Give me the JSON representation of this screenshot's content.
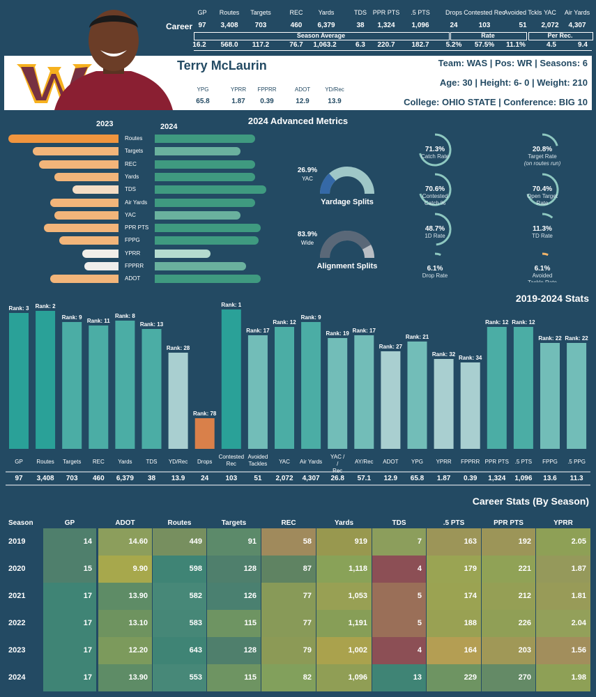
{
  "career": {
    "label": "Career",
    "cols": [
      {
        "h": "GP",
        "v": "97"
      },
      {
        "h": "Routes",
        "v": "3,408"
      },
      {
        "h": "Targets",
        "v": "703"
      },
      {
        "h": "REC",
        "v": "460"
      },
      {
        "h": "Yards",
        "v": "6,379"
      },
      {
        "h": "TDS",
        "v": "38"
      },
      {
        "h": "PPR PTS",
        "v": "1,324"
      },
      {
        "h": ".5 PTS",
        "v": "1,096"
      },
      {
        "h": "Drops",
        "v": "24"
      },
      {
        "h": "Contested Rec",
        "v": "103"
      },
      {
        "h": "Avoided Tckls",
        "v": "51"
      },
      {
        "h": "YAC",
        "v": "2,072"
      },
      {
        "h": "Air Yards",
        "v": "4,307"
      }
    ],
    "group_labels": {
      "season_avg": "Season Average",
      "rate": "Rate",
      "per_rec": "Per Rec."
    },
    "second_row": [
      "16.2",
      "568.0",
      "117.2",
      "76.7",
      "1,063.2",
      "6.3",
      "220.7",
      "182.7",
      "5.2%",
      "57.5%",
      "11.1%",
      "4.5",
      "9.4"
    ]
  },
  "player": {
    "name": "Terry McLaurin",
    "team_line": "Team: WAS  | Pos: WR | Seasons: 6",
    "age_line": "Age: 30 | Height: 6- 0 | Weight: 210",
    "college_line": "College: OHIO STATE  | Conference: BIG 10",
    "mini": [
      {
        "h": "YPG",
        "v": "65.8"
      },
      {
        "h": "YPRR",
        "v": "1.87"
      },
      {
        "h": "FPPRR",
        "v": "0.39"
      },
      {
        "h": "ADOT",
        "v": "12.9"
      },
      {
        "h": "YD/Rec",
        "v": "13.9"
      }
    ]
  },
  "colors": {
    "bg": "#234a63",
    "orange": "#f0953f",
    "teal": "#2aa198",
    "drops": "#d9804a",
    "green2024": "#3f9a80"
  },
  "chart_data": [
    {
      "type": "bar",
      "title": "2024 Advanced Metrics",
      "series": [
        {
          "name": "2023",
          "values": [
            1.0,
            0.78,
            0.72,
            0.58,
            0.42,
            0.62,
            0.58,
            0.68,
            0.54,
            0.33,
            0.31,
            0.62
          ]
        },
        {
          "name": "2024",
          "values": [
            0.9,
            0.77,
            0.9,
            0.9,
            1.0,
            0.9,
            0.77,
            0.95,
            0.93,
            0.5,
            0.82,
            0.95
          ]
        }
      ],
      "categories": [
        "Routes",
        "Targets",
        "REC",
        "Yards",
        "TDS",
        "Air Yards",
        "YAC",
        "PPR PTS",
        "FPPG",
        "YPRR",
        "FPPRR",
        "ADOT"
      ]
    },
    {
      "type": "pie",
      "splits": [
        {
          "pct": "26.9%",
          "label": "YAC",
          "title": "Yardage Splits",
          "value": 26.9
        },
        {
          "pct": "83.9%",
          "label": "Wide",
          "title": "Alignment Splits",
          "value": 83.9
        }
      ],
      "gauges": [
        {
          "pct": "71.3%",
          "label": "Catch Rate",
          "label2": "",
          "value": 71.3
        },
        {
          "pct": "20.8%",
          "label": "Target Rate",
          "label2": "(on routes run)",
          "value": 20.8
        },
        {
          "pct": "70.6%",
          "label": "Contested",
          "label2": "Catch %",
          "value": 70.6
        },
        {
          "pct": "70.4%",
          "label": "Open Target",
          "label2": "Rate",
          "value": 70.4
        },
        {
          "pct": "48.7%",
          "label": "1D Rate",
          "label2": "",
          "value": 48.7
        },
        {
          "pct": "11.3%",
          "label": "TD Rate",
          "label2": "",
          "value": 11.3
        },
        {
          "pct": "6.1%",
          "label": "Drop Rate",
          "label2": "",
          "value": 6.1
        },
        {
          "pct": "6.1%",
          "label": "Avoided",
          "label2": "Tackle Rate",
          "value": 6.1
        }
      ]
    },
    {
      "type": "bar",
      "title": "2019-2024 Stats",
      "categories": [
        "GP",
        "Routes",
        "Targets",
        "REC",
        "Yards",
        "TDS",
        "YD/Rec",
        "Drops",
        "Contested Rec",
        "Avoided Tackles",
        "YAC",
        "Air Yards",
        "YAC / Rec",
        "AY/Rec",
        "ADOT",
        "YPG",
        "YPRR",
        "FPPRR",
        "PPR PTS",
        ".5 PTS",
        "FPPG",
        ".5 PPG"
      ],
      "ranks": [
        3,
        2,
        9,
        11,
        8,
        13,
        28,
        78,
        1,
        17,
        12,
        9,
        19,
        17,
        27,
        21,
        32,
        34,
        12,
        12,
        22,
        22
      ],
      "values_text": [
        "97",
        "3,408",
        "703",
        "460",
        "6,379",
        "38",
        "13.9",
        "24",
        "103",
        "51",
        "2,072",
        "4,307",
        "26.8",
        "57.1",
        "12.9",
        "65.8",
        "1.87",
        "0.39",
        "1,324",
        "1,096",
        "13.6",
        "11.3"
      ]
    },
    {
      "type": "heatmap",
      "title": "Career Stats (By Season)",
      "columns": [
        "Season",
        "GP",
        "ADOT",
        "Routes",
        "Targets",
        "REC",
        "Yards",
        "TDS",
        ".5 PTS",
        "PPR PTS",
        "YPRR"
      ],
      "rows": [
        [
          "2019",
          "14",
          "14.60",
          "449",
          "91",
          "58",
          "919",
          "7",
          "163",
          "192",
          "2.05"
        ],
        [
          "2020",
          "15",
          "9.90",
          "598",
          "128",
          "87",
          "1,118",
          "4",
          "179",
          "221",
          "1.87"
        ],
        [
          "2021",
          "17",
          "13.90",
          "582",
          "126",
          "77",
          "1,053",
          "5",
          "174",
          "212",
          "1.81"
        ],
        [
          "2022",
          "17",
          "13.10",
          "583",
          "115",
          "77",
          "1,191",
          "5",
          "188",
          "226",
          "2.04"
        ],
        [
          "2023",
          "17",
          "12.20",
          "643",
          "128",
          "79",
          "1,002",
          "4",
          "164",
          "203",
          "1.56"
        ],
        [
          "2024",
          "17",
          "13.90",
          "553",
          "115",
          "82",
          "1,096",
          "13",
          "229",
          "270",
          "1.98"
        ]
      ],
      "cell_colors": [
        [
          "#4f7f6c",
          "#8c9e5c",
          "#778f5f",
          "#5c8a6a",
          "#a08a5c",
          "#98984f",
          "#8c9e5c",
          "#9c9558",
          "#9c9558",
          "#8ea056"
        ],
        [
          "#4f7f6c",
          "#a7a84c",
          "#3f8475",
          "#4f7f6c",
          "#5f8362",
          "#89a258",
          "#8c4f55",
          "#9aa453",
          "#90a256",
          "#95995b"
        ],
        [
          "#3f8475",
          "#5e8c66",
          "#478878",
          "#4a8070",
          "#889a58",
          "#98a054",
          "#9a6f58",
          "#9ba352",
          "#959f55",
          "#989b58"
        ],
        [
          "#3f8475",
          "#6e935f",
          "#468777",
          "#6e9462",
          "#889a58",
          "#879e57",
          "#9a6f58",
          "#99a153",
          "#909f56",
          "#93a05a"
        ],
        [
          "#3f8475",
          "#7c9a5c",
          "#3f8475",
          "#4f7f6c",
          "#8c9a56",
          "#aaa24d",
          "#8c4f55",
          "#b49e53",
          "#a09857",
          "#a28e5c"
        ],
        [
          "#3f8475",
          "#5e8c66",
          "#478878",
          "#6e9462",
          "#82a05c",
          "#909e55",
          "#3f8475",
          "#6e9462",
          "#648a66",
          "#8ea056"
        ]
      ]
    }
  ]
}
